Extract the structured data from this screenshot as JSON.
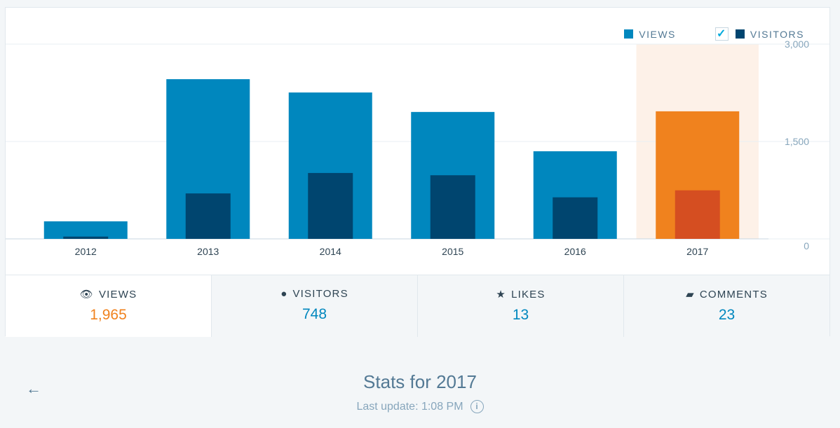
{
  "chart_data": {
    "type": "bar",
    "categories": [
      "2012",
      "2013",
      "2014",
      "2015",
      "2016",
      "2017"
    ],
    "series": [
      {
        "name": "VIEWS",
        "values": [
          270,
          2460,
          2255,
          1955,
          1350,
          1965
        ],
        "color": "#0087be"
      },
      {
        "name": "VISITORS",
        "values": [
          35,
          700,
          1015,
          980,
          640,
          748
        ],
        "color": "#00456f"
      }
    ],
    "highlight": {
      "category": "2017",
      "views_color": "#f0821e",
      "visitors_color": "#d54e21",
      "band_color": "#fdf1e8"
    },
    "yticks": [
      "0",
      "1,500",
      "3,000"
    ],
    "ytick_values": [
      0,
      1500,
      3000
    ],
    "ylim": [
      0,
      3000
    ],
    "legend": "top-right",
    "visitors_checked": true
  },
  "legend": {
    "views": "VIEWS",
    "visitors": "VISITORS"
  },
  "tabs": [
    {
      "label": "VIEWS",
      "value": "1,965",
      "icon": "eye-icon"
    },
    {
      "label": "VISITORS",
      "value": "748",
      "icon": "person-icon"
    },
    {
      "label": "LIKES",
      "value": "13",
      "icon": "star-icon"
    },
    {
      "label": "COMMENTS",
      "value": "23",
      "icon": "comment-icon"
    }
  ],
  "footer": {
    "title": "Stats for 2017",
    "last_update": "Last update: 1:08 PM",
    "back": "←",
    "info": "i"
  }
}
